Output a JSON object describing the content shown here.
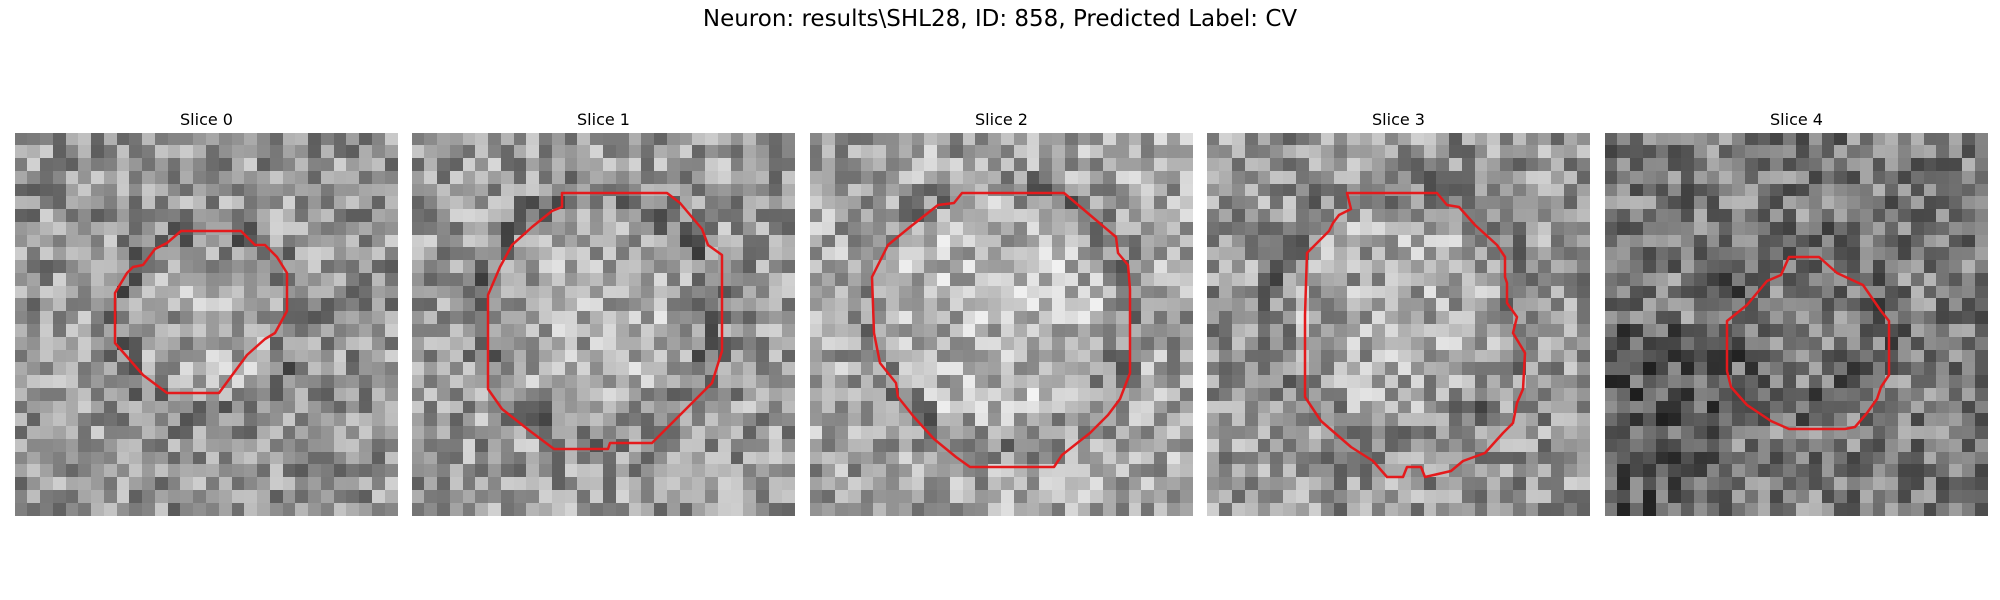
{
  "figure": {
    "title": "Neuron: results\\SHL28, ID: 858, Predicted Label: CV",
    "contour_color": "#e41a1c"
  },
  "panels": [
    {
      "title": "Slice 0"
    },
    {
      "title": "Slice 1"
    },
    {
      "title": "Slice 2"
    },
    {
      "title": "Slice 3"
    },
    {
      "title": "Slice 4"
    }
  ]
}
